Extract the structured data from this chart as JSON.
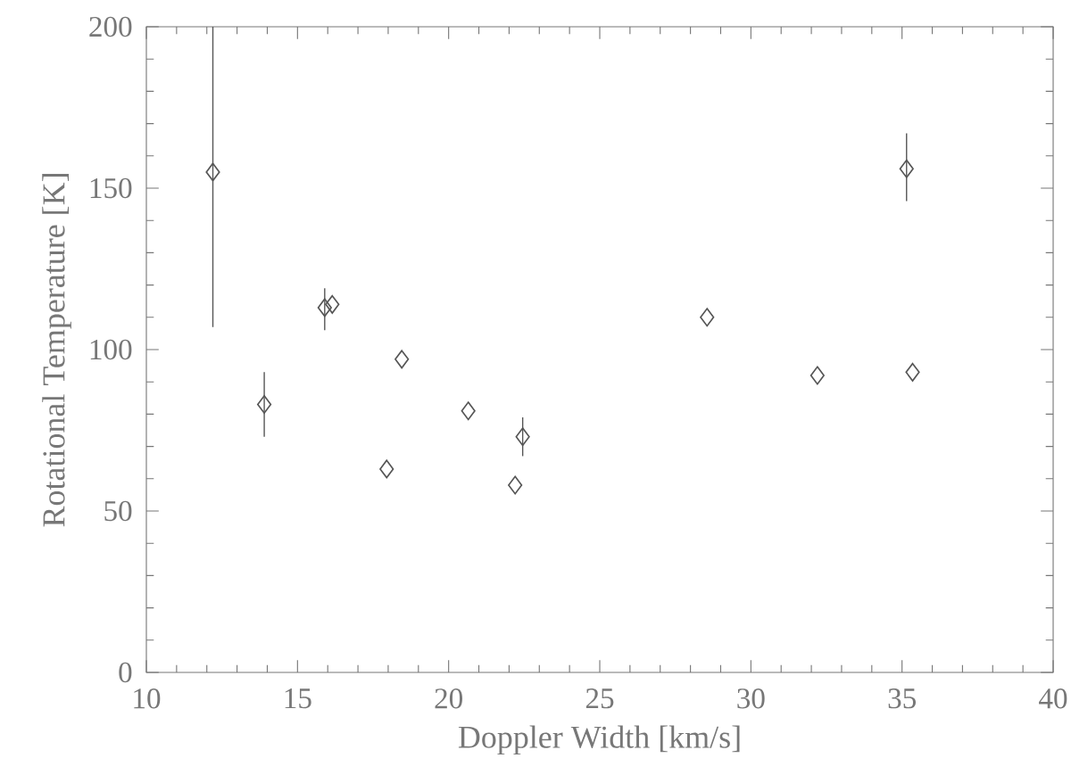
{
  "chart_data": {
    "type": "scatter",
    "xlabel": "Doppler Width [km/s]",
    "ylabel": "Rotational Temperature [K]",
    "x": [
      12.2,
      13.9,
      15.9,
      16.15,
      18.45,
      17.95,
      20.65,
      22.45,
      22.2,
      28.55,
      32.2,
      35.35,
      35.15
    ],
    "values": [
      155,
      83,
      113,
      114,
      97,
      63,
      81,
      73,
      58,
      110,
      92,
      93,
      156
    ],
    "errors": [
      [
        107,
        200
      ],
      [
        73,
        93
      ],
      [
        106,
        119
      ],
      null,
      null,
      null,
      null,
      [
        67,
        79
      ],
      null,
      null,
      null,
      null,
      [
        146,
        167
      ]
    ],
    "color": "#555555",
    "marker": "diamond",
    "grid": false,
    "xlim": [
      10,
      40
    ],
    "ylim": [
      0,
      200
    ],
    "xticks": [
      10,
      15,
      20,
      25,
      30,
      35,
      40
    ],
    "yticks": [
      0,
      50,
      100,
      150,
      200
    ]
  }
}
